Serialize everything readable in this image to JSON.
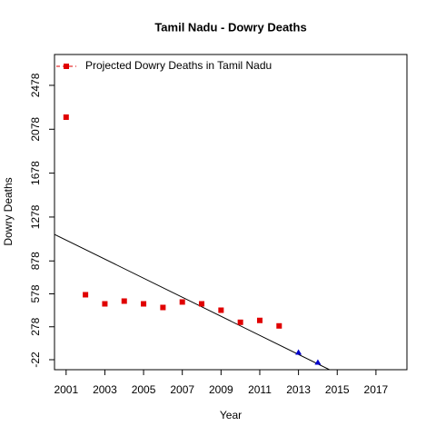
{
  "chart_data": {
    "type": "scatter",
    "title": "Tamil Nadu  -  Dowry Deaths",
    "x_label": "Year",
    "y_label": "Dowry Deaths",
    "xlim": [
      2000.4,
      2018.6
    ],
    "ylim": [
      -113,
      2759
    ],
    "xticks": [
      2001,
      2003,
      2005,
      2007,
      2009,
      2011,
      2013,
      2015,
      2017
    ],
    "yticks": [
      -22,
      278,
      578,
      878,
      1278,
      1678,
      2078,
      2478
    ],
    "legend": "top-left",
    "series": [
      {
        "name": "Projected Dowry Deaths in Tamil Nadu",
        "color": "#e00000",
        "marker": "square",
        "x": [
          2001,
          2002,
          2003,
          2004,
          2005,
          2006,
          2007,
          2008,
          2009,
          2010,
          2011,
          2012
        ],
        "values": [
          2188,
          570,
          487,
          512,
          487,
          454,
          504,
          487,
          429,
          319,
          336,
          286
        ]
      },
      {
        "color": "#0000cc",
        "marker": "triangle",
        "x": [
          2013,
          2014
        ],
        "values": [
          44,
          -47
        ]
      }
    ],
    "trend_line": {
      "color": "#000000",
      "x": [
        2000.4,
        2014.6
      ],
      "values": [
        1120,
        -113
      ]
    }
  }
}
